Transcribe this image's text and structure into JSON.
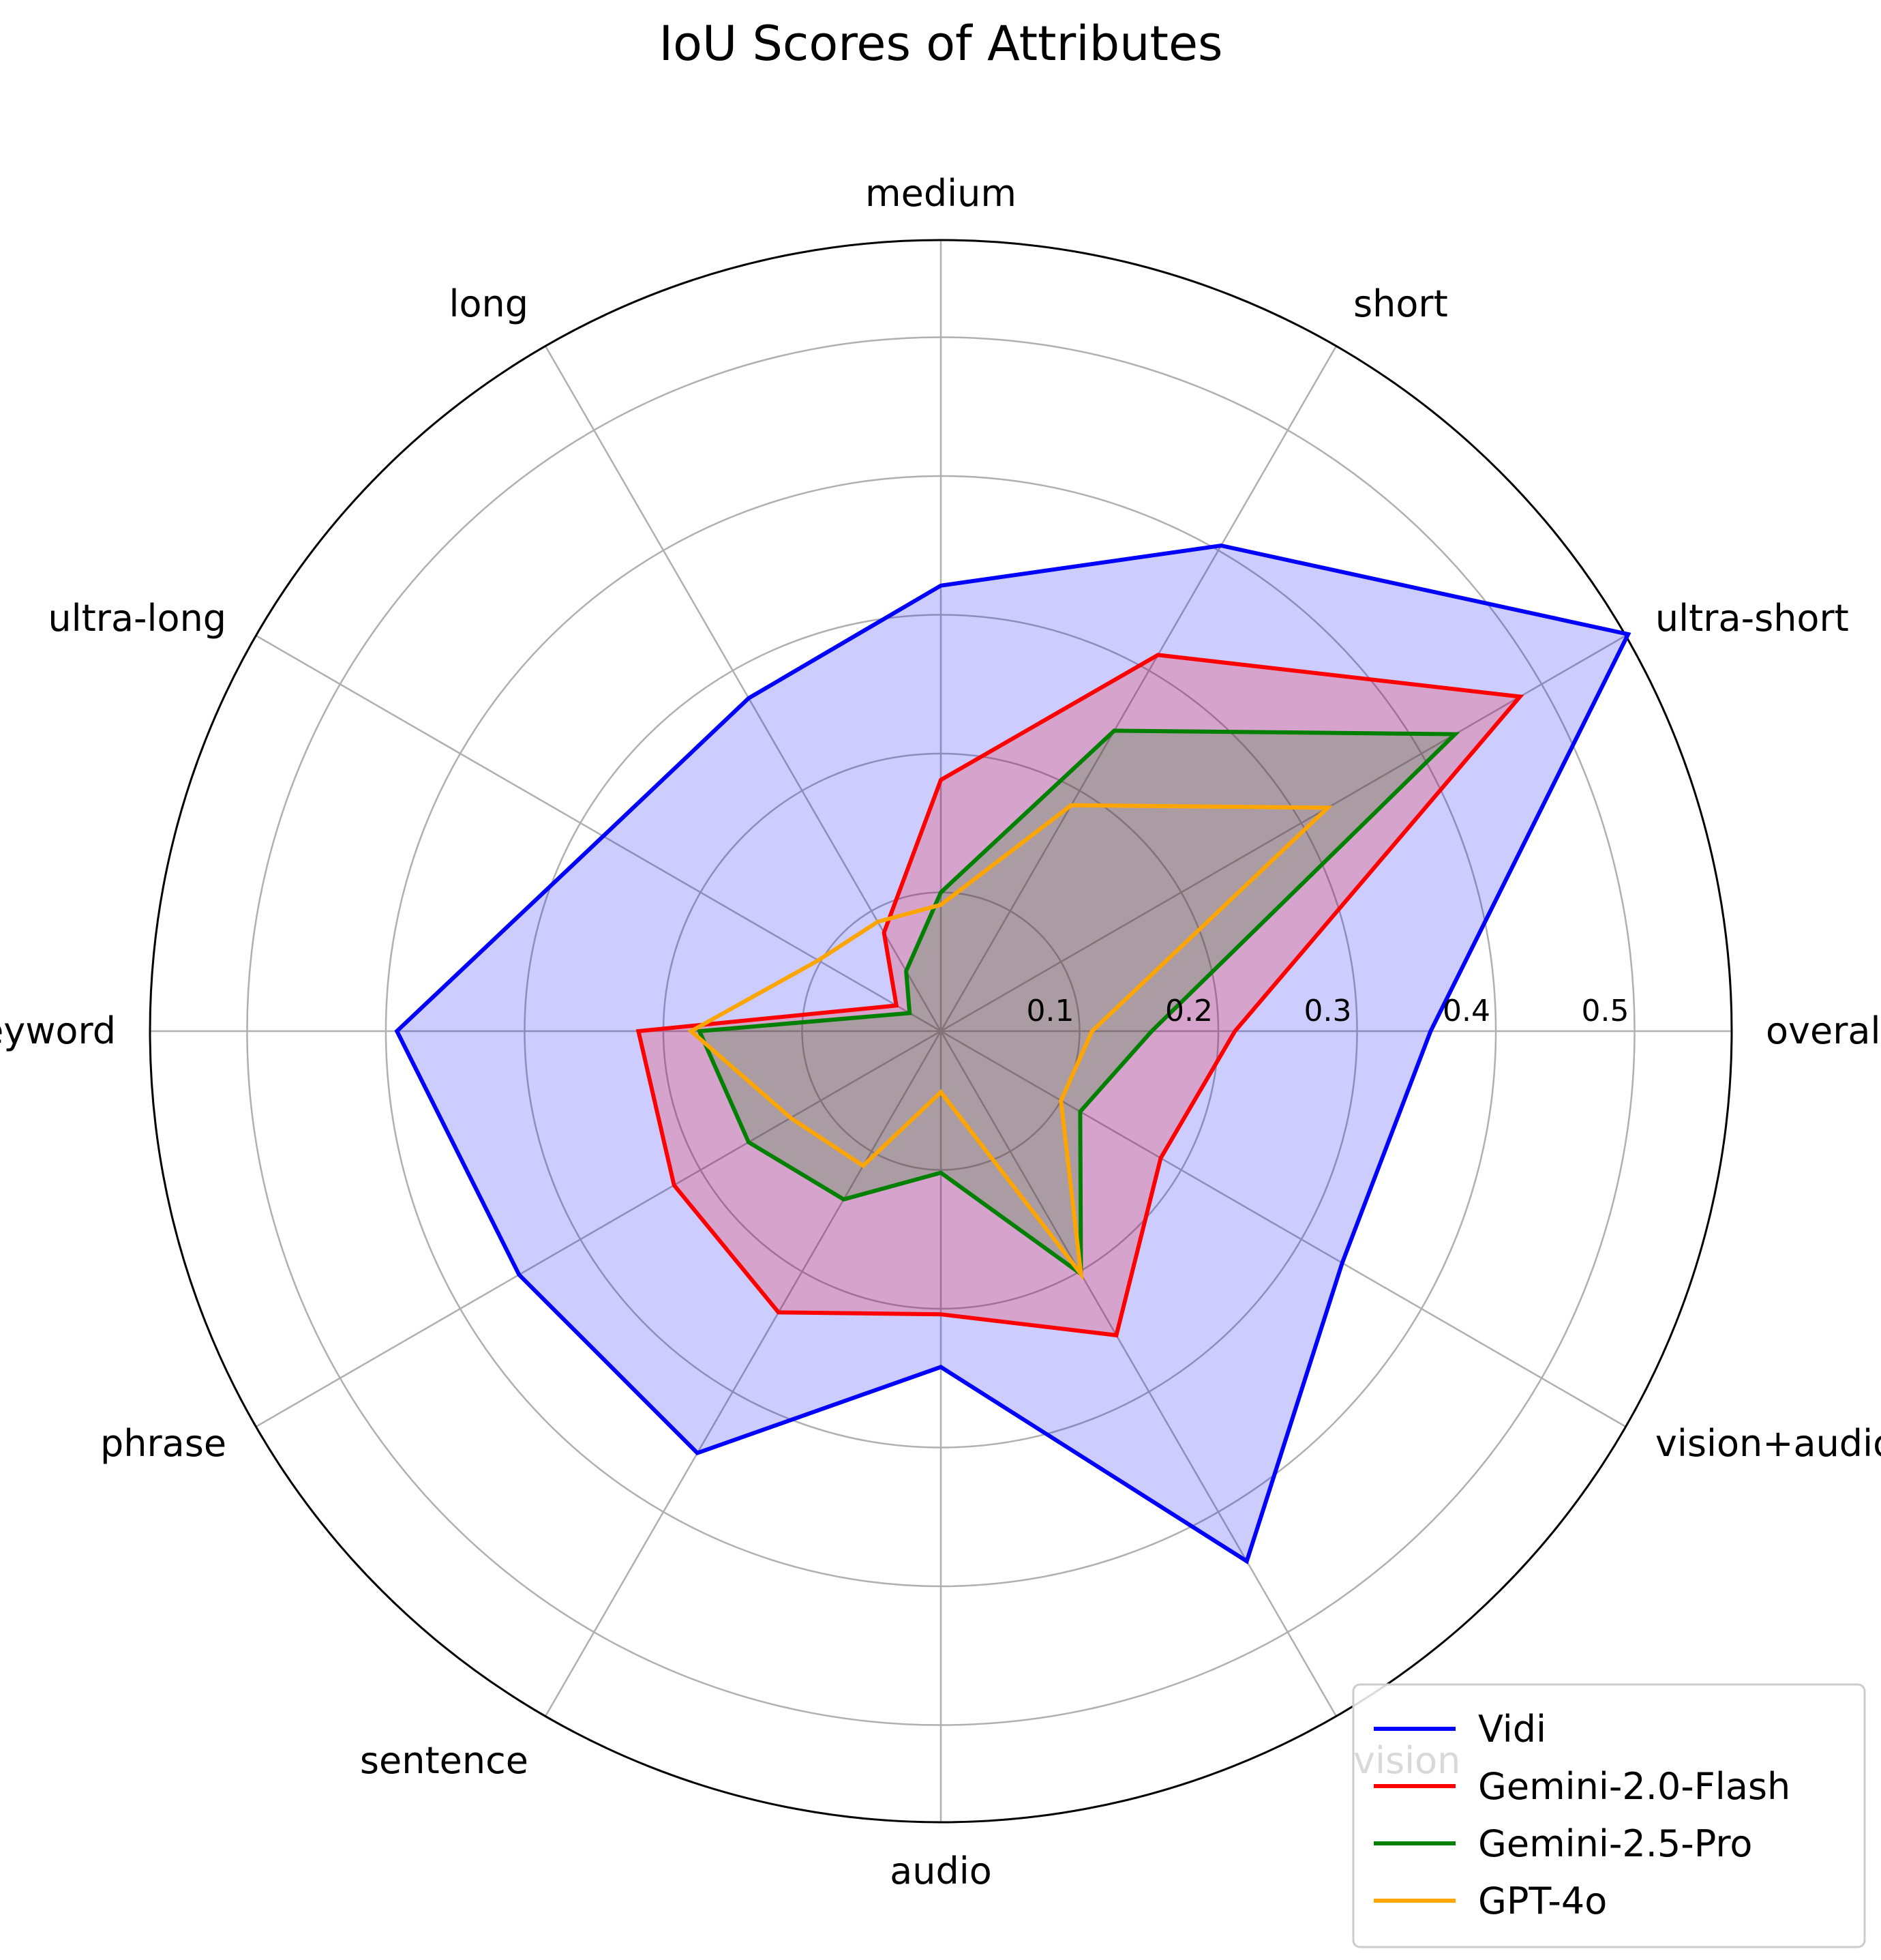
{
  "chart_data": {
    "type": "radar",
    "title": "IoU Scores of Attributes",
    "categories": [
      "overall",
      "ultra-short",
      "short",
      "medium",
      "long",
      "ultra-long",
      "keyword",
      "phrase",
      "sentence",
      "audio",
      "vision",
      "vision+audio"
    ],
    "rlim": [
      0,
      0.57
    ],
    "rticks": [
      0.1,
      0.2,
      0.3,
      0.4,
      0.5
    ],
    "rtick_labels": [
      "0.1",
      "0.2",
      "0.3",
      "0.4",
      "0.5"
    ],
    "grid": true,
    "legend_position": "lower right",
    "series": [
      {
        "name": "Vidi",
        "color": "#0000ff",
        "fill": true,
        "values": [
          0.353,
          0.572,
          0.404,
          0.321,
          0.277,
          0.281,
          0.392,
          0.351,
          0.351,
          0.242,
          0.441,
          0.334
        ]
      },
      {
        "name": "Gemini-2.0-Flash",
        "color": "#ff0000",
        "fill": true,
        "values": [
          0.212,
          0.482,
          0.313,
          0.181,
          0.082,
          0.037,
          0.218,
          0.222,
          0.234,
          0.204,
          0.253,
          0.183
        ]
      },
      {
        "name": "Gemini-2.5-Pro",
        "color": "#008000",
        "fill": true,
        "values": [
          0.152,
          0.428,
          0.25,
          0.1,
          0.05,
          0.026,
          0.174,
          0.16,
          0.14,
          0.102,
          0.202,
          0.116
        ]
      },
      {
        "name": "GPT-4o",
        "color": "#ffa500",
        "fill": false,
        "values": [
          0.109,
          0.322,
          0.188,
          0.091,
          0.091,
          0.102,
          0.18,
          0.125,
          0.112,
          0.044,
          0.202,
          0.1
        ]
      }
    ]
  }
}
